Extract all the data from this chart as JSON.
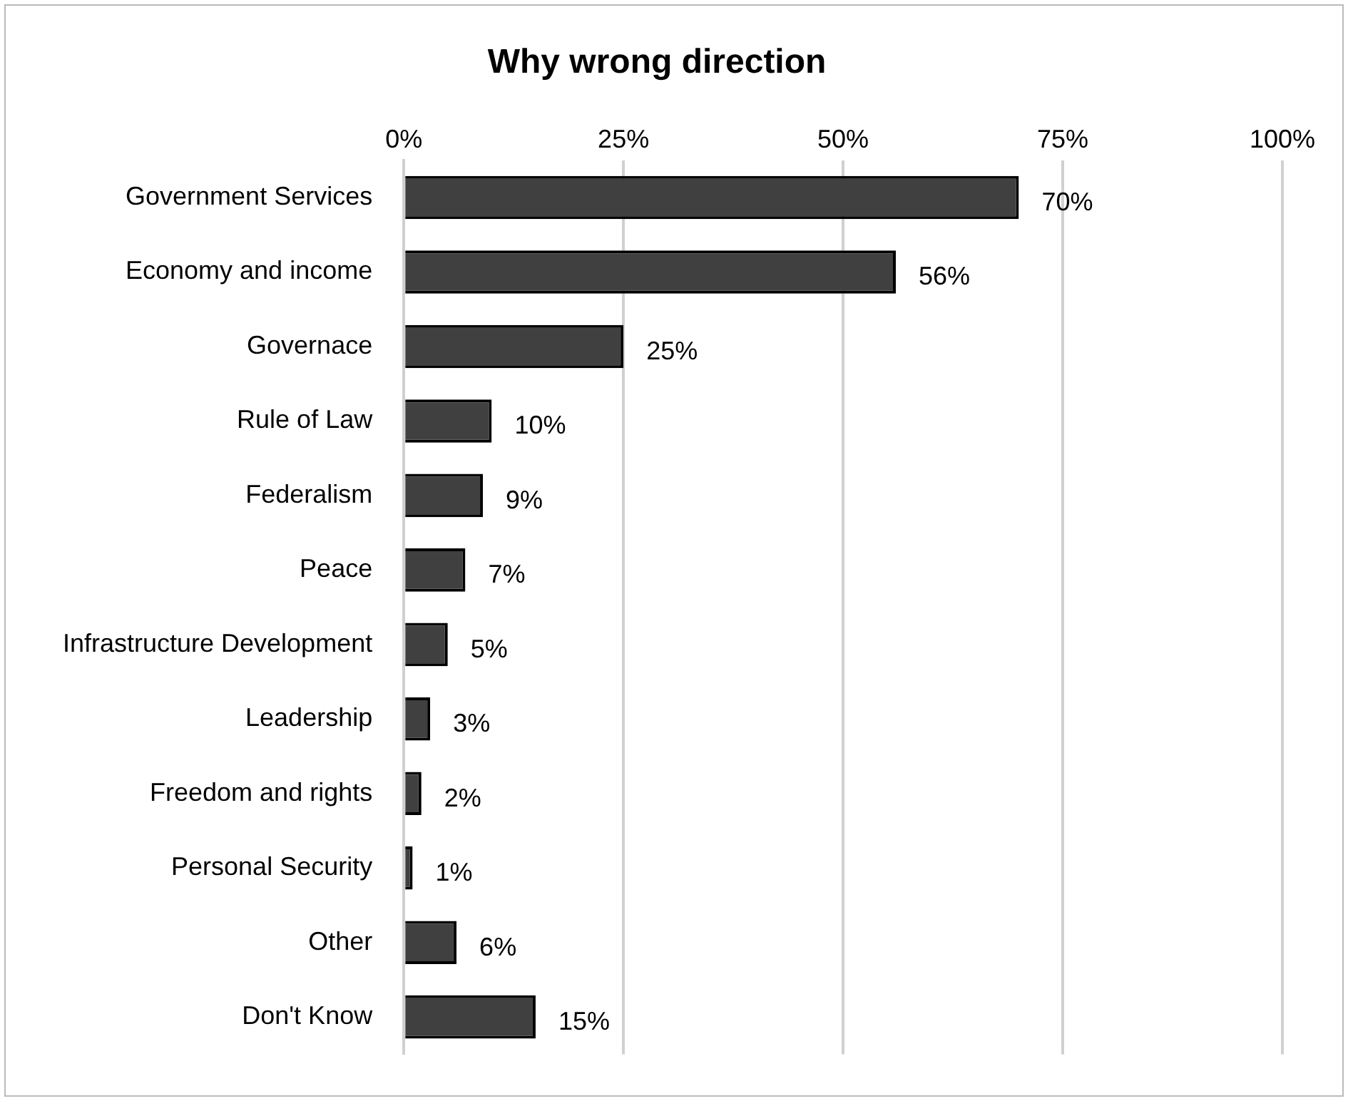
{
  "chart_data": {
    "type": "bar",
    "orientation": "horizontal",
    "title": "Why wrong direction",
    "categories": [
      "Government Services",
      "Economy and income",
      "Governace",
      "Rule of Law",
      "Federalism",
      "Peace",
      "Infrastructure Development",
      "Leadership",
      "Freedom and rights",
      "Personal Security",
      "Other",
      "Don't Know"
    ],
    "values": [
      70,
      56,
      25,
      10,
      9,
      7,
      5,
      3,
      2,
      1,
      6,
      15
    ],
    "value_labels": [
      "70%",
      "56%",
      "25%",
      "10%",
      "9%",
      "7%",
      "5%",
      "3%",
      "2%",
      "1%",
      "6%",
      "15%"
    ],
    "color": "#404040",
    "xlim": [
      0,
      100
    ],
    "xticks": [
      {
        "value": 0,
        "label": "0%"
      },
      {
        "value": 25,
        "label": "25%"
      },
      {
        "value": 50,
        "label": "50%"
      },
      {
        "value": 75,
        "label": "75%"
      },
      {
        "value": 100,
        "label": "100%"
      }
    ],
    "grid": "x",
    "legend": false
  }
}
